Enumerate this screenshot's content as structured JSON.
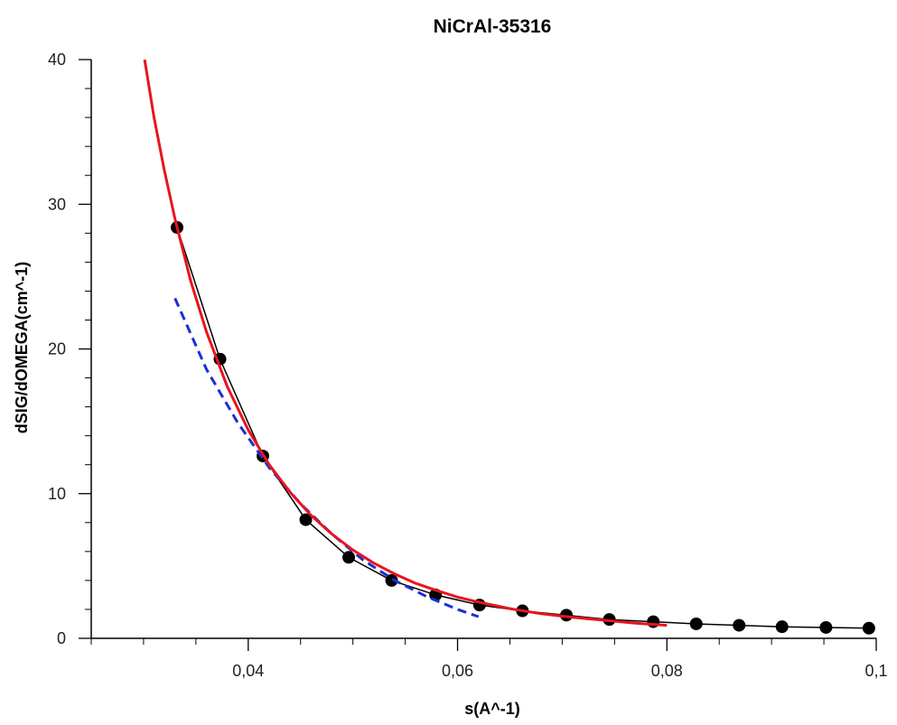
{
  "chart_data": {
    "type": "line",
    "title": "NiCrAl-35316",
    "xlabel": "s(A^-1)",
    "ylabel": "dSIG/dOMEGA(cm^-1)",
    "xlim": [
      0.025,
      0.1
    ],
    "ylim": [
      0,
      40
    ],
    "x_ticks": [
      0.04,
      0.06,
      0.08,
      0.1
    ],
    "x_tick_labels": [
      "0,04",
      "0,06",
      "0,08",
      "0,1"
    ],
    "y_ticks": [
      0,
      10,
      20,
      30,
      40
    ],
    "y_tick_labels": [
      "0",
      "10",
      "20",
      "30",
      "40"
    ],
    "grid": false,
    "legend": "none",
    "series": [
      {
        "style": "black-line-markers",
        "color": "#000000",
        "x": [
          0.0332,
          0.0373,
          0.0414,
          0.0455,
          0.0496,
          0.0537,
          0.0579,
          0.0621,
          0.0662,
          0.0704,
          0.0745,
          0.0787,
          0.0828,
          0.0869,
          0.091,
          0.0952,
          0.0993
        ],
        "y": [
          28.4,
          19.3,
          12.6,
          8.2,
          5.6,
          4.0,
          3.0,
          2.3,
          1.9,
          1.6,
          1.3,
          1.15,
          1.0,
          0.9,
          0.8,
          0.75,
          0.7
        ]
      },
      {
        "style": "blue-dashed",
        "color": "#1a2fd6",
        "x": [
          0.033,
          0.036,
          0.039,
          0.042,
          0.045,
          0.048,
          0.051,
          0.054,
          0.057,
          0.06,
          0.062
        ],
        "y": [
          23.5,
          18.6,
          14.9,
          11.8,
          9.3,
          7.2,
          5.4,
          4.0,
          2.9,
          2.0,
          1.5
        ]
      },
      {
        "style": "red-solid",
        "color": "#e8141e",
        "x": [
          0.0301,
          0.031,
          0.032,
          0.033,
          0.0345,
          0.036,
          0.038,
          0.04,
          0.042,
          0.044,
          0.046,
          0.048,
          0.05,
          0.052,
          0.054,
          0.056,
          0.058,
          0.06,
          0.062,
          0.065,
          0.068,
          0.071,
          0.074,
          0.077,
          0.08
        ],
        "y": [
          40.0,
          36.0,
          32.3,
          29.0,
          24.7,
          21.2,
          17.4,
          14.4,
          12.0,
          10.1,
          8.5,
          7.2,
          6.1,
          5.2,
          4.45,
          3.8,
          3.3,
          2.85,
          2.5,
          2.05,
          1.7,
          1.45,
          1.25,
          1.05,
          0.9
        ]
      }
    ]
  }
}
